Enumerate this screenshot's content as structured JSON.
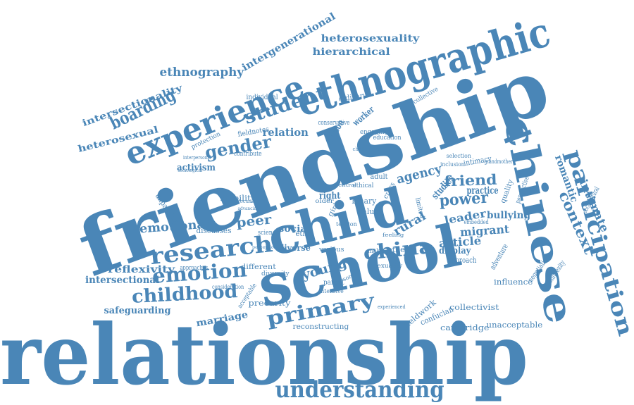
{
  "colors": {
    "primary": "#4a86b7",
    "background": "#ffffff"
  },
  "words": [
    "relationship",
    "friendship",
    "school",
    "child",
    "chinese",
    "ethnographic",
    "experience",
    "participation",
    "understanding",
    "research",
    "emotion",
    "childhood",
    "primary",
    "china",
    "student",
    "gender",
    "boarding",
    "ethnography",
    "intergenerational",
    "heterosexuality",
    "hierarchical",
    "intersectionality",
    "heterosexual",
    "power",
    "friend",
    "agency",
    "young",
    "emotional",
    "peer",
    "context",
    "intimate",
    "romantic",
    "rural",
    "migrant",
    "article",
    "leader",
    "bullying",
    "reflexivity",
    "intersectional",
    "safeguarding",
    "marriage",
    "precarity",
    "reconstructing",
    "cambridge",
    "unacceptable",
    "collectivist",
    "confucian",
    "fieldwork",
    "influence",
    "social",
    "diverse",
    "relation",
    "activism",
    "mobility",
    "unpacking",
    "discusses",
    "different",
    "approaches",
    "display",
    "approach",
    "practice",
    "studies",
    "adventure",
    "negotiating",
    "complexity",
    "sociocultural",
    "protection",
    "individual",
    "fieldnotes",
    "contribute",
    "ordinary",
    "person",
    "worker",
    "collective",
    "intimacy",
    "selection",
    "inclusion",
    "perspective",
    "quality",
    "grandmother",
    "embedded",
    "binary",
    "value",
    "other",
    "right",
    "adult",
    "ethical",
    "ethic",
    "science",
    "parent",
    "intensive",
    "experienced",
    "limited",
    "conservative",
    "engaging",
    "education",
    "diversity",
    "acceptable",
    "consideration",
    "sexuality",
    "personal",
    "various",
    "making",
    "central",
    "older",
    "girl",
    "cross",
    "tension",
    "challenging",
    "interpersonal",
    "sociological",
    "focusing",
    "advancing",
    "perception",
    "feeling"
  ]
}
